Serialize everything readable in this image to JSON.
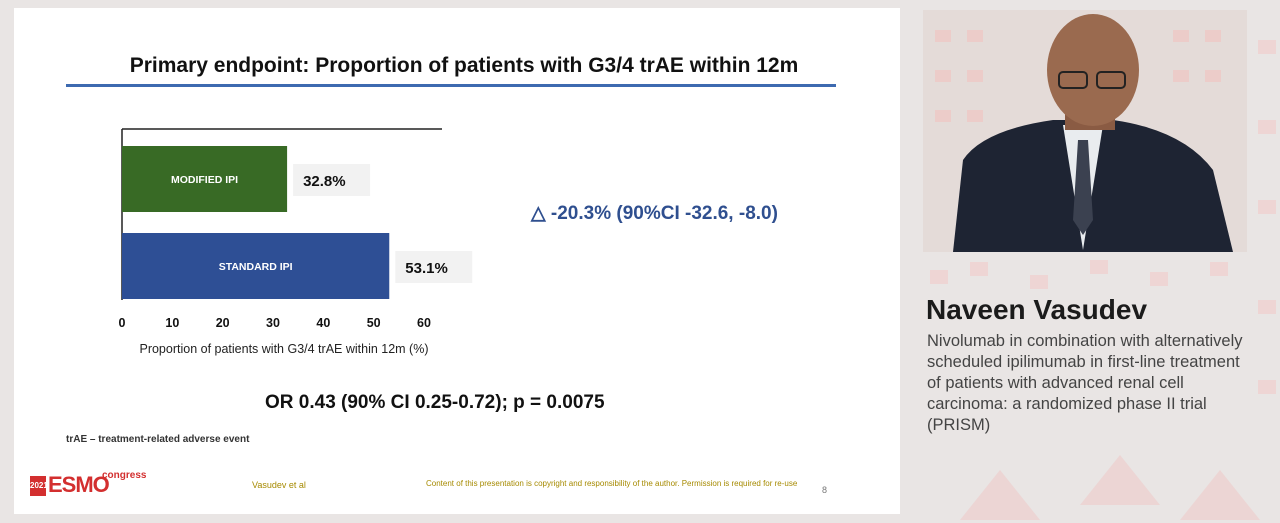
{
  "slide": {
    "title": "Primary endpoint: Proportion of patients with G3/4 trAE within 12m",
    "delta_text": "△ -20.3% (90%CI -32.6, -8.0)",
    "or_text": "OR 0.43 (90% CI 0.25-0.72); p = 0.0075",
    "footnote": "trAE – treatment-related adverse event",
    "logo": {
      "year": "2021",
      "name": "ESMO",
      "suffix": "congress"
    },
    "author": "Vasudev et al",
    "copyright": "Content of this presentation is copyright and responsibility of the author. Permission is required for re-use",
    "page_number": "8",
    "colors": {
      "modified": "#386a25",
      "standard": "#2e4f95",
      "rule": "#3d6ab0"
    }
  },
  "chart_data": {
    "type": "bar",
    "orientation": "horizontal",
    "categories": [
      "MODIFIED IPI",
      "STANDARD IPI"
    ],
    "values": [
      32.8,
      53.1
    ],
    "value_labels": [
      "32.8%",
      "53.1%"
    ],
    "colors": [
      "#386a25",
      "#2e4f95"
    ],
    "xlabel": "Proportion of patients with G3/4 trAE within 12m (%)",
    "xlim": [
      0,
      60
    ],
    "xticks": [
      "0",
      "10",
      "20",
      "30",
      "40",
      "50",
      "60"
    ],
    "grid": false
  },
  "speaker": {
    "name": "Naveen Vasudev",
    "talk_title": "Nivolumab in combination with alternatively scheduled ipilimumab in first-line treatment of patients with advanced renal cell carcinoma: a randomized phase II trial (PRISM)"
  }
}
